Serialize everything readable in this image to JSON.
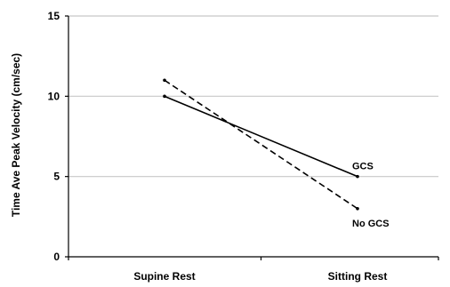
{
  "chart_data": {
    "type": "line",
    "categories": [
      "Supine Rest",
      "Sitting Rest"
    ],
    "ylabel": "Time Ave Peak Velocity (cm/sec)",
    "ylim": [
      0,
      15
    ],
    "yticks": [
      0,
      5,
      10,
      15
    ],
    "grid": true,
    "series": [
      {
        "name": "GCS",
        "values": [
          10,
          5
        ],
        "line_style": "solid",
        "color": "#000000"
      },
      {
        "name": "No GCS",
        "values": [
          11,
          3
        ],
        "line_style": "dashed",
        "color": "#000000"
      }
    ]
  }
}
